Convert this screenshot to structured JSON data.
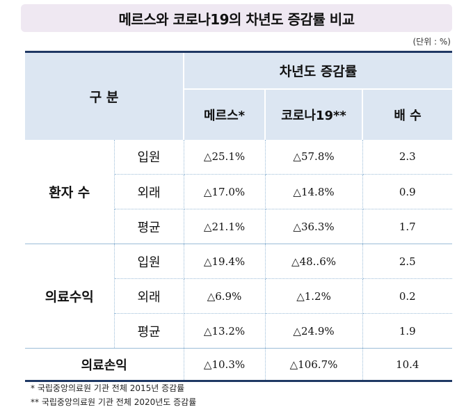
{
  "title": "메르스와 코로나19의 차년도 증감률 비교",
  "unit": "(단위 : %)",
  "header": {
    "category": "구 분",
    "group": "차년도 증감률",
    "columns": [
      "메르스*",
      "코로나19**",
      "배 수"
    ]
  },
  "groups": [
    {
      "name": "환자 수",
      "rows": [
        {
          "label": "입원",
          "mers": "△25.1%",
          "covid": "△57.8%",
          "ratio": "2.3"
        },
        {
          "label": "외래",
          "mers": "△17.0%",
          "covid": "△14.8%",
          "ratio": "0.9"
        },
        {
          "label": "평균",
          "mers": "△21.1%",
          "covid": "△36.3%",
          "ratio": "1.7"
        }
      ]
    },
    {
      "name": "의료수익",
      "rows": [
        {
          "label": "입원",
          "mers": "△19.4%",
          "covid": "△48..6%",
          "ratio": "2.5"
        },
        {
          "label": "외래",
          "mers": "△6.9%",
          "covid": "△1.2%",
          "ratio": "0.2"
        },
        {
          "label": "평균",
          "mers": "△13.2%",
          "covid": "△24.9%",
          "ratio": "1.9"
        }
      ]
    }
  ],
  "total_row": {
    "label": "의료손익",
    "mers": "△10.3%",
    "covid": "△106.7%",
    "ratio": "10.4"
  },
  "notes": [
    "* 국립중앙의료원 기관 전체 2015년 증감률",
    "** 국립중앙의료원 기관 전체 2020년도 증감률"
  ],
  "colors": {
    "header_bg": "#dce6f2",
    "title_bg": "#efe8f2",
    "border_dark": "#1f3864",
    "border_light": "#9bbcd8"
  }
}
